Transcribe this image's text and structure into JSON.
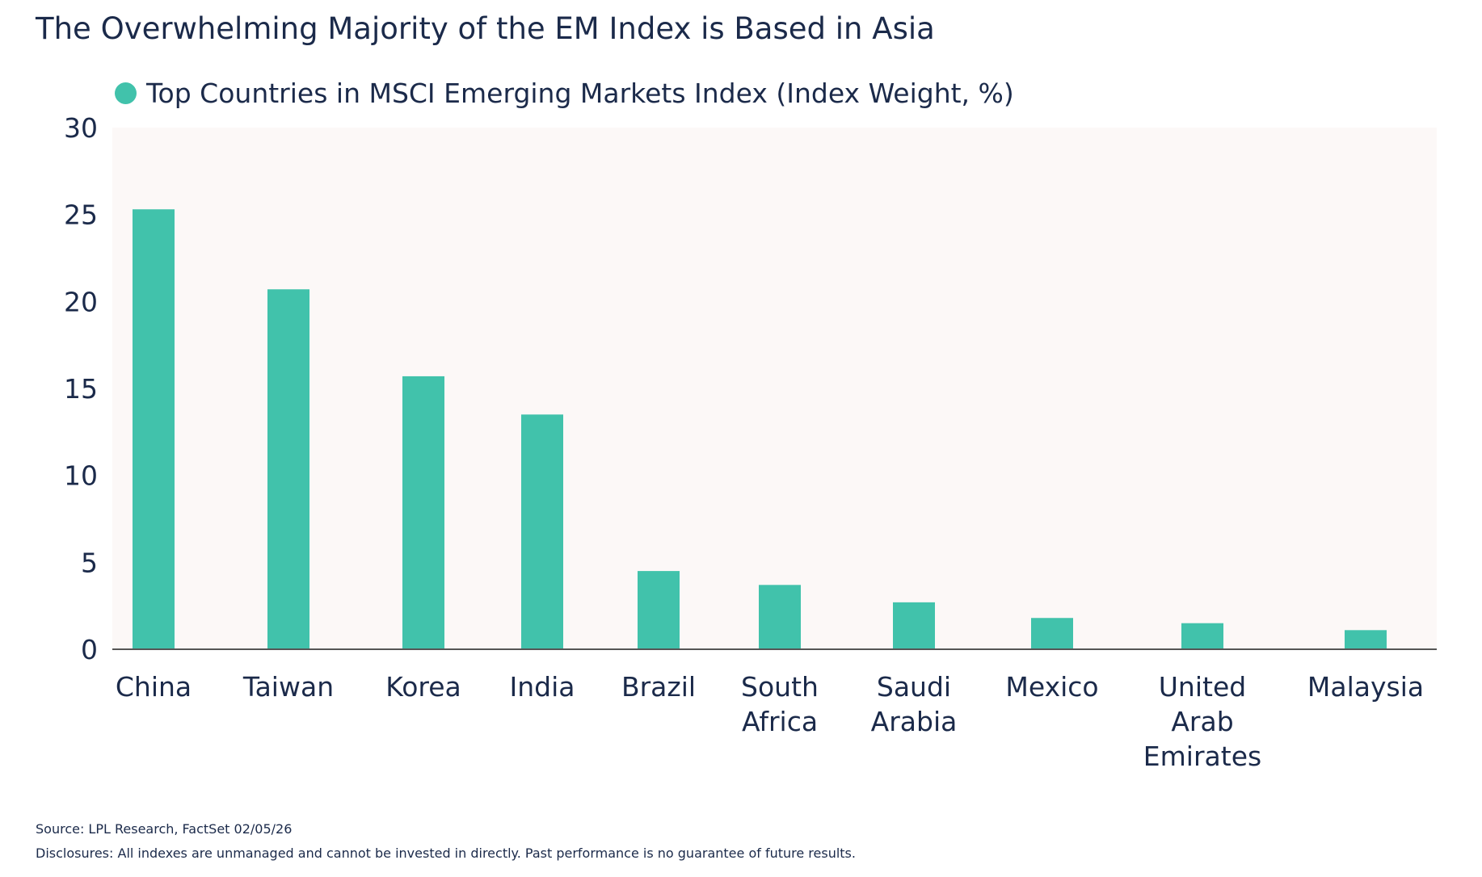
{
  "title": "The Overwhelming Majority of the EM Index is Based in Asia",
  "footer": {
    "source": "Source: LPL Research, FactSet 02/05/26",
    "disclosures": "Disclosures: All indexes are unmanaged and cannot be invested in directly. Past performance is no guarantee of future results."
  },
  "colors": {
    "bar": "#41c2ab",
    "plot_background": "#fcf8f7",
    "text": "#1b2a4a",
    "axis": "#555555"
  },
  "chart_data": {
    "type": "bar",
    "legend": {
      "label": "Top Countries in MSCI Emerging Markets Index (Index Weight, %)",
      "placement": "top-left"
    },
    "categories": [
      [
        "China"
      ],
      [
        "Taiwan"
      ],
      [
        "Korea"
      ],
      [
        "India"
      ],
      [
        "Brazil"
      ],
      [
        "South",
        "Africa"
      ],
      [
        "Saudi",
        "Arabia"
      ],
      [
        "Mexico"
      ],
      [
        "United",
        "Arab",
        "Emirates"
      ],
      [
        "Malaysia"
      ]
    ],
    "series": [
      {
        "name": "Top Countries in MSCI Emerging Markets Index (Index Weight, %)",
        "values": [
          25.3,
          20.7,
          15.7,
          13.5,
          4.5,
          3.7,
          2.7,
          1.8,
          1.5,
          1.1
        ]
      }
    ],
    "ylim": [
      0,
      30
    ],
    "yticks": [
      0,
      5,
      10,
      15,
      20,
      25,
      30
    ],
    "grid": false
  }
}
